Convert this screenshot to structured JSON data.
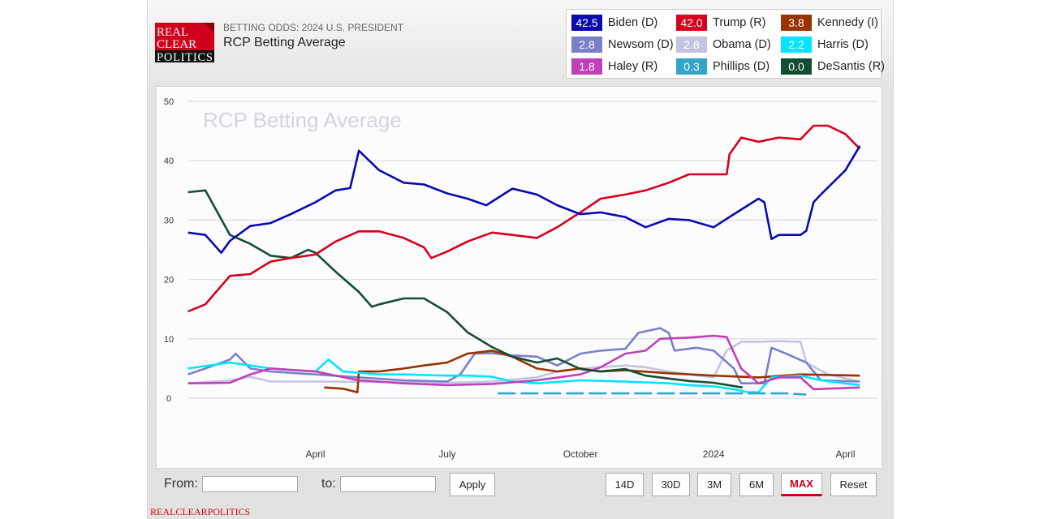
{
  "header": {
    "logo_text": [
      "REAL",
      "CLEAR",
      "POLITICS"
    ],
    "subtitle": "BETTING ODDS: 2024 U.S. PRESIDENT",
    "title": "RCP Betting Average"
  },
  "legend": [
    {
      "value": "42.5",
      "name": "Biden (D)",
      "color": "#0a0ab0"
    },
    {
      "value": "42.0",
      "name": "Trump (R)",
      "color": "#d8001a"
    },
    {
      "value": "3.8",
      "name": "Kennedy (I)",
      "color": "#993300"
    },
    {
      "value": "2.8",
      "name": "Newsom (D)",
      "color": "#7a80c8"
    },
    {
      "value": "2.8",
      "name": "Obama (D)",
      "color": "#c4c4e0"
    },
    {
      "value": "2.2",
      "name": "Harris (D)",
      "color": "#00e5ff"
    },
    {
      "value": "1.8",
      "name": "Haley (R)",
      "color": "#c040b8"
    },
    {
      "value": "0.3",
      "name": "Phillips (D)",
      "color": "#33a6c8"
    },
    {
      "value": "0.0",
      "name": "DeSantis (R)",
      "color": "#134d34"
    }
  ],
  "toolbar": {
    "from_label": "From:",
    "to_label": "to:",
    "from_value": "",
    "to_value": "",
    "apply": "Apply",
    "ranges": [
      "14D",
      "30D",
      "3M",
      "6M",
      "MAX",
      "Reset"
    ],
    "active_range": "MAX"
  },
  "footer": "REALCLEARPOLITICS",
  "chart_data": {
    "type": "line",
    "title": "RCP Betting Average",
    "ylim": [
      0,
      50
    ],
    "yticks": [
      "0",
      "10",
      "20",
      "30",
      "40",
      "50"
    ],
    "xticks": [
      {
        "date": "2023-04-01",
        "label": "April"
      },
      {
        "date": "2023-07-01",
        "label": "July"
      },
      {
        "date": "2023-10-01",
        "label": "October"
      },
      {
        "date": "2024-01-01",
        "label": "2024"
      },
      {
        "date": "2024-04-01",
        "label": "April"
      }
    ],
    "grid": true,
    "legend_position": "top-right",
    "series": [
      {
        "name": "Obama (D)",
        "color": "#c4c4e0",
        "points": [
          [
            "2023-01-03",
            2.5
          ],
          [
            "2023-02-01",
            3
          ],
          [
            "2023-02-15",
            3.6
          ],
          [
            "2023-03-01",
            2.8
          ],
          [
            "2023-04-01",
            2.8
          ],
          [
            "2023-06-01",
            2.7
          ],
          [
            "2023-07-01",
            2.6
          ],
          [
            "2023-08-01",
            2.8
          ],
          [
            "2023-09-01",
            3.5
          ],
          [
            "2023-09-15",
            4.5
          ],
          [
            "2023-10-01",
            5
          ],
          [
            "2023-11-01",
            5.5
          ],
          [
            "2023-11-15",
            5.2
          ],
          [
            "2023-12-01",
            4.5
          ],
          [
            "2023-12-15",
            4
          ],
          [
            "2024-01-01",
            3.5
          ],
          [
            "2024-01-10",
            8
          ],
          [
            "2024-01-20",
            9.5
          ],
          [
            "2024-02-01",
            9.5
          ],
          [
            "2024-02-15",
            9.6
          ],
          [
            "2024-03-01",
            9.5
          ],
          [
            "2024-03-05",
            6
          ],
          [
            "2024-03-20",
            4
          ],
          [
            "2024-04-11",
            2.8
          ]
        ]
      },
      {
        "name": "Newsom (D)",
        "color": "#7a80c8",
        "points": [
          [
            "2023-01-03",
            4
          ],
          [
            "2023-01-15",
            5
          ],
          [
            "2023-02-01",
            6.5
          ],
          [
            "2023-02-05",
            7.5
          ],
          [
            "2023-02-15",
            5
          ],
          [
            "2023-03-01",
            4.5
          ],
          [
            "2023-04-01",
            4
          ],
          [
            "2023-05-01",
            3.5
          ],
          [
            "2023-06-01",
            3
          ],
          [
            "2023-07-01",
            2.8
          ],
          [
            "2023-07-10",
            4
          ],
          [
            "2023-07-20",
            7.5
          ],
          [
            "2023-08-01",
            7.6
          ],
          [
            "2023-08-15",
            7.2
          ],
          [
            "2023-09-01",
            7
          ],
          [
            "2023-09-15",
            5.5
          ],
          [
            "2023-10-01",
            7.5
          ],
          [
            "2023-10-15",
            8
          ],
          [
            "2023-11-01",
            8.3
          ],
          [
            "2023-11-10",
            11
          ],
          [
            "2023-11-25",
            11.8
          ],
          [
            "2023-12-01",
            11
          ],
          [
            "2023-12-05",
            8
          ],
          [
            "2023-12-20",
            8.5
          ],
          [
            "2024-01-01",
            8
          ],
          [
            "2024-01-15",
            5
          ],
          [
            "2024-01-20",
            2.5
          ],
          [
            "2024-02-05",
            2.5
          ],
          [
            "2024-02-10",
            8.5
          ],
          [
            "2024-02-20",
            7.5
          ],
          [
            "2024-03-05",
            6
          ],
          [
            "2024-03-15",
            3
          ],
          [
            "2024-04-11",
            2.8
          ]
        ]
      },
      {
        "name": "Kennedy (I)",
        "color": "#993300",
        "points": [
          [
            "2023-04-07",
            1.8
          ],
          [
            "2023-04-20",
            1.6
          ],
          [
            "2023-04-30",
            1.0
          ],
          [
            "2023-05-01",
            4.5
          ],
          [
            "2023-05-15",
            4.5
          ],
          [
            "2023-06-01",
            5
          ],
          [
            "2023-06-15",
            5.5
          ],
          [
            "2023-07-01",
            6
          ],
          [
            "2023-07-15",
            7.5
          ],
          [
            "2023-08-01",
            8
          ],
          [
            "2023-08-15",
            7
          ],
          [
            "2023-09-01",
            5
          ],
          [
            "2023-09-15",
            4.5
          ],
          [
            "2023-10-01",
            5
          ],
          [
            "2023-10-15",
            4.5
          ],
          [
            "2023-11-01",
            4.7
          ],
          [
            "2023-12-01",
            4.2
          ],
          [
            "2024-01-01",
            3.8
          ],
          [
            "2024-02-01",
            3.5
          ],
          [
            "2024-03-01",
            4
          ],
          [
            "2024-04-11",
            3.8
          ]
        ]
      },
      {
        "name": "Harris (D)",
        "color": "#00e5ff",
        "points": [
          [
            "2023-01-03",
            5
          ],
          [
            "2023-02-01",
            6
          ],
          [
            "2023-02-15",
            5.5
          ],
          [
            "2023-03-01",
            5
          ],
          [
            "2023-04-01",
            4.5
          ],
          [
            "2023-04-10",
            6.5
          ],
          [
            "2023-04-20",
            4.5
          ],
          [
            "2023-05-15",
            4
          ],
          [
            "2023-06-01",
            4
          ],
          [
            "2023-07-01",
            3.8
          ],
          [
            "2023-07-15",
            3.8
          ],
          [
            "2023-08-01",
            3.6
          ],
          [
            "2023-08-15",
            2.8
          ],
          [
            "2023-09-01",
            2.5
          ],
          [
            "2023-10-01",
            3
          ],
          [
            "2023-11-01",
            2.8
          ],
          [
            "2023-12-01",
            2.5
          ],
          [
            "2023-12-15",
            2.2
          ],
          [
            "2024-01-01",
            2
          ],
          [
            "2024-01-15",
            1.5
          ],
          [
            "2024-01-25",
            1
          ],
          [
            "2024-02-01",
            1
          ],
          [
            "2024-02-10",
            3.5
          ],
          [
            "2024-03-01",
            3.8
          ],
          [
            "2024-03-15",
            3
          ],
          [
            "2024-04-11",
            2.2
          ]
        ]
      },
      {
        "name": "Haley (R)",
        "color": "#c040b8",
        "points": [
          [
            "2023-01-03",
            2.5
          ],
          [
            "2023-02-01",
            2.6
          ],
          [
            "2023-02-15",
            4
          ],
          [
            "2023-03-01",
            5
          ],
          [
            "2023-04-01",
            4.5
          ],
          [
            "2023-04-15",
            3.8
          ],
          [
            "2023-05-01",
            3
          ],
          [
            "2023-06-01",
            2.5
          ],
          [
            "2023-07-01",
            2.2
          ],
          [
            "2023-08-01",
            2.4
          ],
          [
            "2023-09-01",
            3
          ],
          [
            "2023-10-01",
            4
          ],
          [
            "2023-10-15",
            5.2
          ],
          [
            "2023-11-01",
            7.5
          ],
          [
            "2023-11-15",
            8
          ],
          [
            "2023-11-25",
            10
          ],
          [
            "2023-12-15",
            10.2
          ],
          [
            "2024-01-01",
            10.5
          ],
          [
            "2024-01-10",
            10.3
          ],
          [
            "2024-01-20",
            5
          ],
          [
            "2024-02-01",
            2.5
          ],
          [
            "2024-02-15",
            3.5
          ],
          [
            "2024-03-01",
            3.5
          ],
          [
            "2024-03-10",
            1.5
          ],
          [
            "2024-04-11",
            1.8
          ]
        ]
      },
      {
        "name": "Phillips (D)",
        "color": "#33a6c8",
        "dashed": true,
        "points": [
          [
            "2023-08-05",
            0.8
          ],
          [
            "2023-09-20",
            0.8
          ],
          [
            "2023-10-20",
            0.8
          ],
          [
            "2023-11-25",
            0.8
          ],
          [
            "2024-01-15",
            0.8
          ],
          [
            "2024-02-20",
            0.8
          ],
          [
            "2024-03-05",
            0.6
          ]
        ]
      },
      {
        "name": "DeSantis (R)",
        "color": "#134d34",
        "points": [
          [
            "2023-01-03",
            34.7
          ],
          [
            "2023-01-15",
            35
          ],
          [
            "2023-02-01",
            27.5
          ],
          [
            "2023-02-15",
            26
          ],
          [
            "2023-03-01",
            24
          ],
          [
            "2023-03-15",
            23.6
          ],
          [
            "2023-03-27",
            25
          ],
          [
            "2023-04-01",
            24.5
          ],
          [
            "2023-04-15",
            21.3
          ],
          [
            "2023-05-01",
            17.9
          ],
          [
            "2023-05-10",
            15.4
          ],
          [
            "2023-05-15",
            15.8
          ],
          [
            "2023-06-01",
            16.8
          ],
          [
            "2023-06-15",
            16.8
          ],
          [
            "2023-07-01",
            14.5
          ],
          [
            "2023-07-15",
            11.1
          ],
          [
            "2023-08-01",
            8.6
          ],
          [
            "2023-08-15",
            7
          ],
          [
            "2023-09-01",
            6
          ],
          [
            "2023-09-15",
            6.7
          ],
          [
            "2023-10-01",
            4.9
          ],
          [
            "2023-10-15",
            4.5
          ],
          [
            "2023-11-01",
            4.9
          ],
          [
            "2023-11-15",
            3.8
          ],
          [
            "2023-12-01",
            3.3
          ],
          [
            "2023-12-15",
            2.9
          ],
          [
            "2024-01-01",
            2.6
          ],
          [
            "2024-01-21",
            1.8
          ]
        ]
      },
      {
        "name": "Trump (R)",
        "color": "#d8001a",
        "points": [
          [
            "2023-01-03",
            14.6
          ],
          [
            "2023-01-15",
            15.8
          ],
          [
            "2023-02-01",
            20.6
          ],
          [
            "2023-02-15",
            20.9
          ],
          [
            "2023-03-01",
            23
          ],
          [
            "2023-03-15",
            23.6
          ],
          [
            "2023-04-01",
            24.2
          ],
          [
            "2023-04-15",
            26.4
          ],
          [
            "2023-05-01",
            28.1
          ],
          [
            "2023-05-15",
            28.1
          ],
          [
            "2023-06-01",
            27
          ],
          [
            "2023-06-15",
            25.4
          ],
          [
            "2023-06-20",
            23.6
          ],
          [
            "2023-07-01",
            24.7
          ],
          [
            "2023-07-15",
            26.4
          ],
          [
            "2023-08-01",
            27.9
          ],
          [
            "2023-08-15",
            27.5
          ],
          [
            "2023-09-01",
            27
          ],
          [
            "2023-09-15",
            28.8
          ],
          [
            "2023-10-01",
            31.3
          ],
          [
            "2023-10-15",
            33.6
          ],
          [
            "2023-11-01",
            34.3
          ],
          [
            "2023-11-15",
            35
          ],
          [
            "2023-12-01",
            36.3
          ],
          [
            "2023-12-15",
            37.7
          ],
          [
            "2024-01-01",
            37.7
          ],
          [
            "2024-01-10",
            37.7
          ],
          [
            "2024-01-12",
            41.1
          ],
          [
            "2024-01-20",
            43.9
          ],
          [
            "2024-02-01",
            43.2
          ],
          [
            "2024-02-15",
            43.9
          ],
          [
            "2024-03-01",
            43.6
          ],
          [
            "2024-03-10",
            45.9
          ],
          [
            "2024-03-20",
            45.9
          ],
          [
            "2024-04-01",
            44.5
          ],
          [
            "2024-04-11",
            42.0
          ]
        ]
      },
      {
        "name": "Biden (D)",
        "color": "#0a0ab0",
        "points": [
          [
            "2023-01-03",
            27.9
          ],
          [
            "2023-01-15",
            27.5
          ],
          [
            "2023-01-26",
            24.5
          ],
          [
            "2023-02-01",
            26.5
          ],
          [
            "2023-02-15",
            29
          ],
          [
            "2023-03-01",
            29.5
          ],
          [
            "2023-03-15",
            31
          ],
          [
            "2023-04-01",
            33
          ],
          [
            "2023-04-15",
            35
          ],
          [
            "2023-04-25",
            35.4
          ],
          [
            "2023-05-01",
            41.7
          ],
          [
            "2023-05-15",
            38.4
          ],
          [
            "2023-06-01",
            36.3
          ],
          [
            "2023-06-15",
            36
          ],
          [
            "2023-07-01",
            34.5
          ],
          [
            "2023-07-15",
            33.6
          ],
          [
            "2023-07-28",
            32.5
          ],
          [
            "2023-08-15",
            35.3
          ],
          [
            "2023-09-01",
            34.3
          ],
          [
            "2023-09-15",
            32.5
          ],
          [
            "2023-10-01",
            31
          ],
          [
            "2023-10-15",
            31.3
          ],
          [
            "2023-11-01",
            30.5
          ],
          [
            "2023-11-15",
            28.8
          ],
          [
            "2023-12-01",
            30.2
          ],
          [
            "2023-12-15",
            30
          ],
          [
            "2024-01-01",
            28.8
          ],
          [
            "2024-01-15",
            31
          ],
          [
            "2024-02-01",
            33.6
          ],
          [
            "2024-02-05",
            33
          ],
          [
            "2024-02-10",
            26.8
          ],
          [
            "2024-02-15",
            27.5
          ],
          [
            "2024-03-01",
            27.5
          ],
          [
            "2024-03-05",
            28.2
          ],
          [
            "2024-03-10",
            33
          ],
          [
            "2024-03-15",
            34.3
          ],
          [
            "2024-04-01",
            38.4
          ],
          [
            "2024-04-11",
            42.5
          ]
        ]
      }
    ]
  }
}
